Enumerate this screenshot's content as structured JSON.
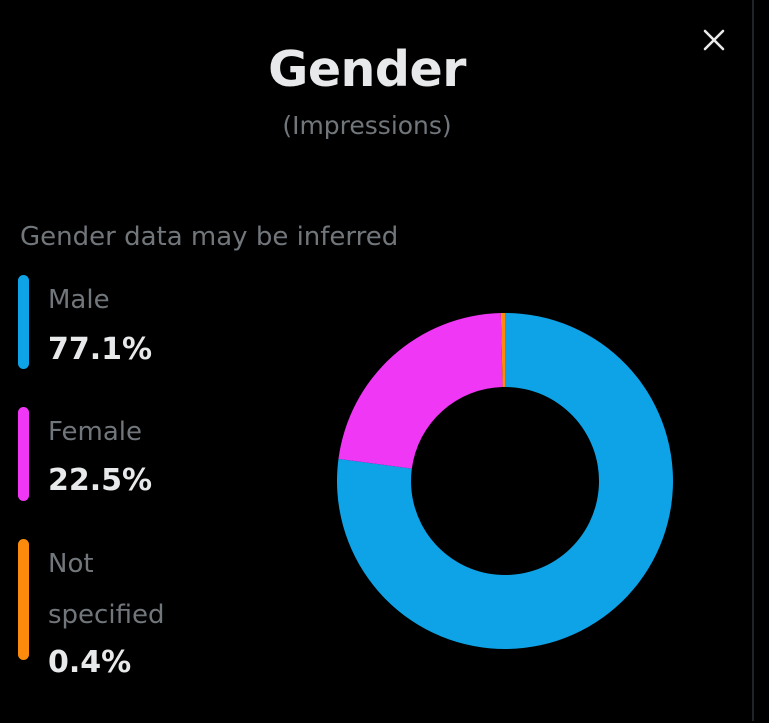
{
  "dialog": {
    "title": "Gender",
    "subtitle": "(Impressions)",
    "close_icon": "close-icon"
  },
  "note": "Gender data may be inferred",
  "legend": [
    {
      "label_lines": [
        "Male"
      ],
      "value": "77.1%",
      "color": "#0ea2e7"
    },
    {
      "label_lines": [
        "Female"
      ],
      "value": "22.5%",
      "color": "#f037f5"
    },
    {
      "label_lines": [
        "Not",
        "specified"
      ],
      "value": "0.4%",
      "color": "#fb8a0d"
    }
  ],
  "chart_data": {
    "type": "pie",
    "donut": true,
    "title": "Gender",
    "subtitle": "(Impressions)",
    "categories": [
      "Male",
      "Female",
      "Not specified"
    ],
    "values": [
      77.1,
      22.5,
      0.4
    ],
    "unit": "%",
    "colors": [
      "#0ea2e7",
      "#f037f5",
      "#fb8a0d"
    ],
    "start": "top, clockwise"
  }
}
